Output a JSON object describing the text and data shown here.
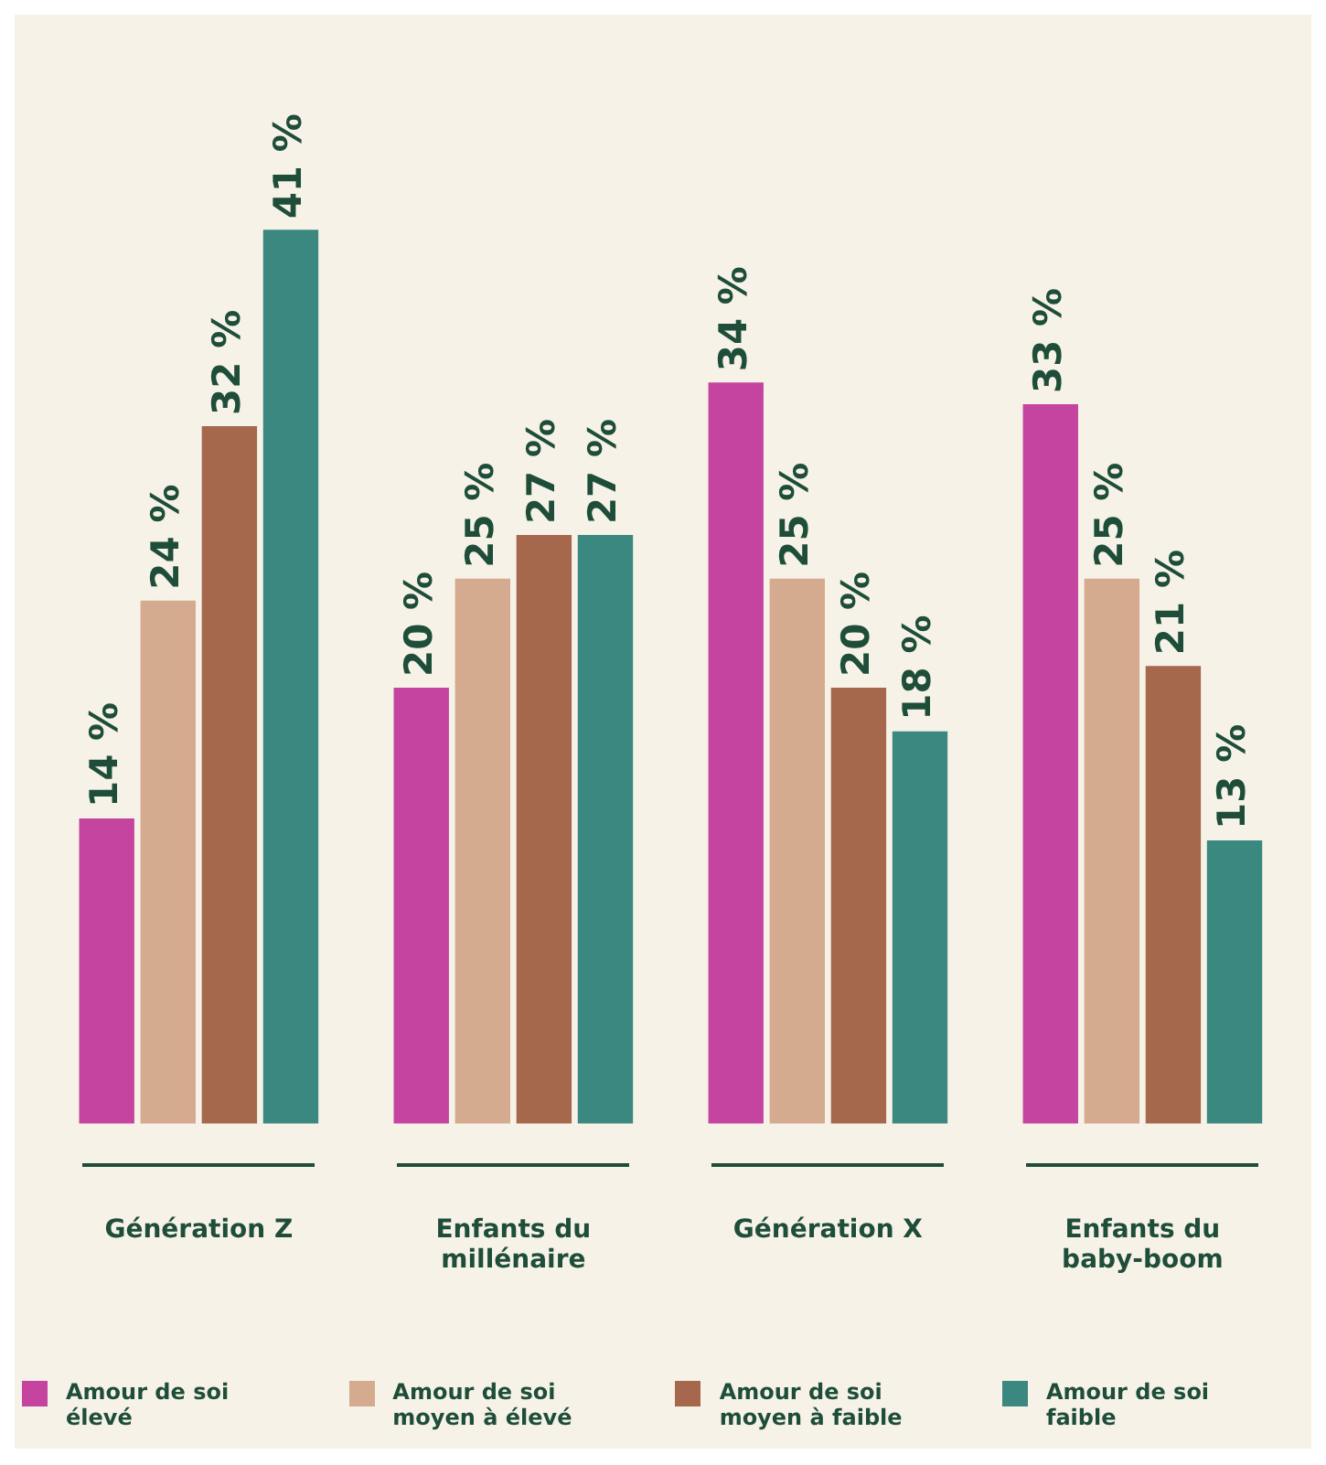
{
  "chart_data": {
    "type": "bar",
    "categories": [
      "Génération Z",
      "Enfants du millénaire",
      "Génération X",
      "Enfants du baby-boom"
    ],
    "series": [
      {
        "name": "Amour de soi élevé",
        "color": "#c4449f",
        "values": [
          14,
          20,
          34,
          33
        ],
        "value_labels": [
          "14 %",
          "20 %",
          "34 %",
          "33 %"
        ]
      },
      {
        "name": "Amour de soi moyen à élevé",
        "color": "#d4ab8f",
        "values": [
          24,
          25,
          25,
          25
        ],
        "value_labels": [
          "24 %",
          "25 %",
          "25 %",
          "25 %"
        ]
      },
      {
        "name": "Amour de soi moyen à faible",
        "color": "#a5684c",
        "values": [
          32,
          27,
          20,
          21
        ],
        "value_labels": [
          "32 %",
          "27 %",
          "20 %",
          "21 %"
        ]
      },
      {
        "name": "Amour de soi faible",
        "color": "#3b8880",
        "values": [
          41,
          27,
          18,
          13
        ],
        "value_labels": [
          "41 %",
          "27 %",
          "18 %",
          "13 %"
        ]
      }
    ],
    "legend": "bottom",
    "grid": false
  }
}
